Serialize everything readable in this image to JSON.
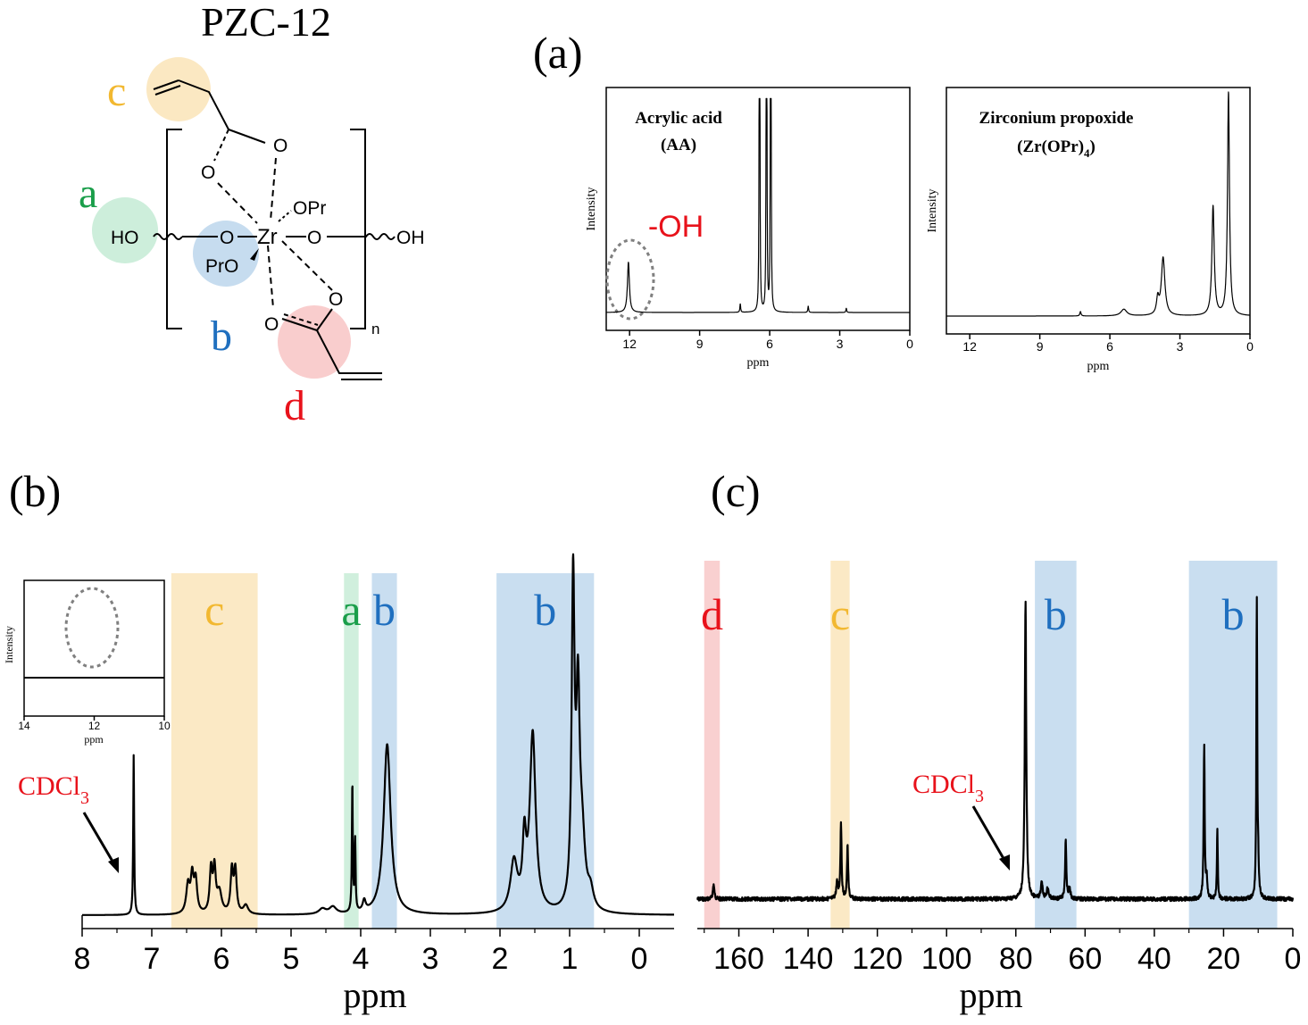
{
  "figure_title": "PZC-12",
  "colors": {
    "a": "#1a9e4a",
    "b": "#1f6fbf",
    "c": "#f2b830",
    "d": "#e8121b",
    "a_fill": "#cdeedb",
    "b_fill": "#c6dcef",
    "c_fill": "#fbe8c2",
    "d_fill": "#f9cdcd",
    "cdcl3": "#e8121b",
    "oh_label": "#e8121b",
    "line": "#000000"
  },
  "structure": {
    "label_a": "a",
    "label_b": "b",
    "label_c": "c",
    "label_d": "d",
    "ho": "HO",
    "oh": "OH",
    "opr": "OPr",
    "pro": "PrO",
    "zr": "Zr",
    "o": "O",
    "n": "n"
  },
  "panels": {
    "a": {
      "label": "(a)"
    },
    "b": {
      "label": "(b)"
    },
    "c": {
      "label": "(c)"
    }
  },
  "chart_data": [
    {
      "id": "acrylic-acid",
      "type": "line",
      "title": "Acrylic acid",
      "subtitle": "(AA)",
      "xlabel": "ppm",
      "ylabel": "Intensity",
      "xlim": [
        13.0,
        0
      ],
      "ticks": [
        12,
        9,
        6,
        3,
        0
      ],
      "annotation": "-OH",
      "peaks": [
        {
          "x": 12.05,
          "h": 0.24,
          "w": 0.05
        },
        {
          "x": 7.26,
          "h": 0.04,
          "w": 0.02
        },
        {
          "x": 6.45,
          "h": 0.93,
          "w": 0.015
        },
        {
          "x": 6.42,
          "h": 0.9,
          "w": 0.015
        },
        {
          "x": 6.15,
          "h": 0.9,
          "w": 0.015
        },
        {
          "x": 6.12,
          "h": 0.87,
          "w": 0.015
        },
        {
          "x": 5.97,
          "h": 0.94,
          "w": 0.015
        },
        {
          "x": 5.94,
          "h": 0.9,
          "w": 0.015
        },
        {
          "x": 4.35,
          "h": 0.03,
          "w": 0.02
        },
        {
          "x": 2.72,
          "h": 0.02,
          "w": 0.02
        }
      ]
    },
    {
      "id": "zirconium-propoxide",
      "type": "line",
      "title": "Zirconium propoxide",
      "subtitle_main": "(Zr(OPr)",
      "subtitle_sub": "4",
      "subtitle_end": ")",
      "xlabel": "ppm",
      "ylabel": "Intensity",
      "xlim": [
        13.0,
        0
      ],
      "ticks": [
        12,
        9,
        6,
        3,
        0
      ],
      "peaks": [
        {
          "x": 7.26,
          "h": 0.02,
          "w": 0.03
        },
        {
          "x": 5.4,
          "h": 0.03,
          "w": 0.15
        },
        {
          "x": 3.95,
          "h": 0.07,
          "w": 0.06
        },
        {
          "x": 3.72,
          "h": 0.26,
          "w": 0.09
        },
        {
          "x": 1.58,
          "h": 0.49,
          "w": 0.06
        },
        {
          "x": 0.92,
          "h": 1.0,
          "w": 0.05
        }
      ]
    },
    {
      "id": "pzc12-1h-inset",
      "type": "line",
      "xlabel": "ppm",
      "ylabel": "Intensity",
      "xlim": [
        14,
        10
      ],
      "ticks": [
        14,
        12,
        10
      ],
      "peaks": []
    },
    {
      "id": "pzc12-1h",
      "type": "line",
      "xlabel": "ppm",
      "xlim": [
        8.0,
        -0.5
      ],
      "ticks": [
        8,
        7,
        6,
        5,
        4,
        3,
        2,
        1,
        0
      ],
      "solvent_label": "CDCl",
      "solvent_sub": "3",
      "solvent_ppm": 7.26,
      "bands": [
        {
          "label": "c",
          "from": 6.72,
          "to": 5.48,
          "color": "c"
        },
        {
          "label": "a",
          "from": 4.24,
          "to": 4.03,
          "color": "a"
        },
        {
          "label": "b",
          "from": 3.84,
          "to": 3.48,
          "color": "b"
        },
        {
          "label": "b",
          "from": 2.05,
          "to": 0.65,
          "color": "b"
        }
      ],
      "peaks": [
        {
          "x": 7.26,
          "h": 0.45,
          "w": 0.008
        },
        {
          "x": 6.48,
          "h": 0.08,
          "w": 0.03
        },
        {
          "x": 6.42,
          "h": 0.1,
          "w": 0.025
        },
        {
          "x": 6.37,
          "h": 0.09,
          "w": 0.025
        },
        {
          "x": 6.15,
          "h": 0.12,
          "w": 0.022
        },
        {
          "x": 6.1,
          "h": 0.12,
          "w": 0.022
        },
        {
          "x": 6.03,
          "h": 0.06,
          "w": 0.04
        },
        {
          "x": 5.85,
          "h": 0.12,
          "w": 0.022
        },
        {
          "x": 5.8,
          "h": 0.12,
          "w": 0.022
        },
        {
          "x": 5.65,
          "h": 0.025,
          "w": 0.04
        },
        {
          "x": 4.55,
          "h": 0.015,
          "w": 0.06
        },
        {
          "x": 4.4,
          "h": 0.02,
          "w": 0.06
        },
        {
          "x": 4.12,
          "h": 0.36,
          "w": 0.008
        },
        {
          "x": 4.08,
          "h": 0.2,
          "w": 0.008
        },
        {
          "x": 3.95,
          "h": 0.03,
          "w": 0.025
        },
        {
          "x": 3.62,
          "h": 0.48,
          "w": 0.06
        },
        {
          "x": 1.8,
          "h": 0.14,
          "w": 0.06
        },
        {
          "x": 1.65,
          "h": 0.18,
          "w": 0.03
        },
        {
          "x": 1.53,
          "h": 0.5,
          "w": 0.05
        },
        {
          "x": 0.95,
          "h": 0.9,
          "w": 0.025
        },
        {
          "x": 0.88,
          "h": 0.55,
          "w": 0.03
        },
        {
          "x": 0.82,
          "h": 0.18,
          "w": 0.05
        },
        {
          "x": 0.7,
          "h": 0.05,
          "w": 0.05
        }
      ]
    },
    {
      "id": "pzc12-13c",
      "type": "line",
      "xlabel": "ppm",
      "xlim": [
        172,
        0
      ],
      "ticks": [
        160,
        140,
        120,
        100,
        80,
        60,
        40,
        20,
        0
      ],
      "solvent_label": "CDCl",
      "solvent_sub": "3",
      "solvent_ppm": 77.0,
      "bands": [
        {
          "label": "d",
          "from": 170,
          "to": 165.5,
          "color": "d"
        },
        {
          "label": "c",
          "from": 133.5,
          "to": 128,
          "color": "c"
        },
        {
          "label": "b",
          "from": 74.5,
          "to": 62.5,
          "color": "b"
        },
        {
          "label": "b",
          "from": 30,
          "to": 4.5,
          "color": "b"
        }
      ],
      "peaks": [
        {
          "x": 167.3,
          "h": 0.045,
          "w": 0.25
        },
        {
          "x": 131.6,
          "h": 0.05,
          "w": 0.3
        },
        {
          "x": 130.5,
          "h": 0.23,
          "w": 0.2
        },
        {
          "x": 128.6,
          "h": 0.16,
          "w": 0.2
        },
        {
          "x": 77.2,
          "h": 0.9,
          "w": 0.25
        },
        {
          "x": 72.5,
          "h": 0.05,
          "w": 0.3
        },
        {
          "x": 70.8,
          "h": 0.035,
          "w": 0.3
        },
        {
          "x": 65.6,
          "h": 0.18,
          "w": 0.2
        },
        {
          "x": 64.5,
          "h": 0.03,
          "w": 0.3
        },
        {
          "x": 25.6,
          "h": 0.46,
          "w": 0.18
        },
        {
          "x": 24.9,
          "h": 0.06,
          "w": 0.2
        },
        {
          "x": 21.8,
          "h": 0.21,
          "w": 0.15
        },
        {
          "x": 10.4,
          "h": 0.9,
          "w": 0.15
        },
        {
          "x": 10.0,
          "h": 0.09,
          "w": 0.2
        }
      ]
    }
  ]
}
